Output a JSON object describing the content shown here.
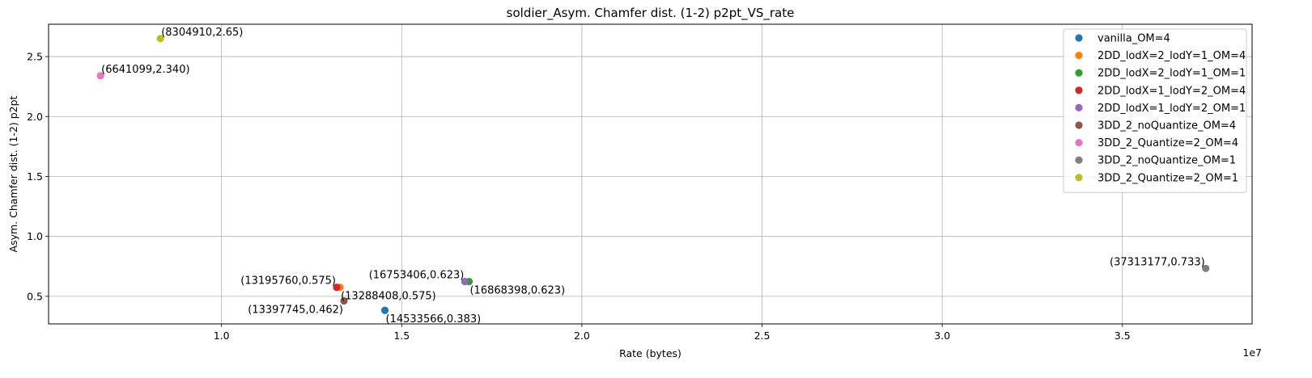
{
  "chart_data": {
    "type": "scatter",
    "title": "soldier_Asym. Chamfer dist. (1-2) p2pt_VS_rate",
    "xlabel": "Rate (bytes)",
    "ylabel": "Asym. Chamfer dist. (1-2) p2pt",
    "x_offset_label": "1e7",
    "x_scale": 10000000,
    "xlim": [
      5200000,
      38600000
    ],
    "ylim": [
      0.27,
      2.77
    ],
    "xticks": [
      {
        "value": 1.0,
        "label": "1.0"
      },
      {
        "value": 1.5,
        "label": "1.5"
      },
      {
        "value": 2.0,
        "label": "2.0"
      },
      {
        "value": 2.5,
        "label": "2.5"
      },
      {
        "value": 3.0,
        "label": "3.0"
      },
      {
        "value": 3.5,
        "label": "3.5"
      }
    ],
    "yticks": [
      {
        "value": 0.5,
        "label": "0.5"
      },
      {
        "value": 1.0,
        "label": "1.0"
      },
      {
        "value": 1.5,
        "label": "1.5"
      },
      {
        "value": 2.0,
        "label": "2.0"
      },
      {
        "value": 2.5,
        "label": "2.5"
      }
    ],
    "grid": true,
    "legend_position": "top-right",
    "series": [
      {
        "name": "vanilla_OM=4",
        "color": "#1f77b4",
        "x": [
          14533566
        ],
        "y": [
          0.383
        ],
        "labels": [
          "(14533566,0.383)"
        ],
        "label_anchor": "left-below"
      },
      {
        "name": "2DD_lodX=2_lodY=1_OM=4",
        "color": "#ff7f0e",
        "x": [
          13288408
        ],
        "y": [
          0.575
        ],
        "labels": [
          "(13288408,0.575)"
        ],
        "label_anchor": "left-below"
      },
      {
        "name": "2DD_lodX=2_lodY=1_OM=1",
        "color": "#2ca02c",
        "x": [
          16868398
        ],
        "y": [
          0.623
        ],
        "labels": [
          "(16868398,0.623)"
        ],
        "label_anchor": "left-below"
      },
      {
        "name": "2DD_lodX=1_lodY=2_OM=4",
        "color": "#d62728",
        "x": [
          13195760
        ],
        "y": [
          0.575
        ],
        "labels": [
          "(13195760,0.575)"
        ],
        "label_anchor": "right-above"
      },
      {
        "name": "2DD_lodX=1_lodY=2_OM=1",
        "color": "#9467bd",
        "x": [
          16753406
        ],
        "y": [
          0.623
        ],
        "labels": [
          "(16753406,0.623)"
        ],
        "label_anchor": "right-above"
      },
      {
        "name": "3DD_2_noQuantize_OM=4",
        "color": "#8c564b",
        "x": [
          13397745
        ],
        "y": [
          0.462
        ],
        "labels": [
          "(13397745,0.462)"
        ],
        "label_anchor": "right-below"
      },
      {
        "name": "3DD_2_Quantize=2_OM=4",
        "color": "#e377c2",
        "x": [
          6641099
        ],
        "y": [
          2.34
        ],
        "labels": [
          "(6641099,2.340)"
        ],
        "label_anchor": "left-above"
      },
      {
        "name": "3DD_2_noQuantize_OM=1",
        "color": "#7f7f7f",
        "x": [
          37313177
        ],
        "y": [
          0.733
        ],
        "labels": [
          "(37313177,0.733)"
        ],
        "label_anchor": "right-above"
      },
      {
        "name": "3DD_2_Quantize=2_OM=1",
        "color": "#bcbd22",
        "x": [
          8304910
        ],
        "y": [
          2.65
        ],
        "labels": [
          "(8304910,2.65)"
        ],
        "label_anchor": "left-above"
      }
    ]
  }
}
